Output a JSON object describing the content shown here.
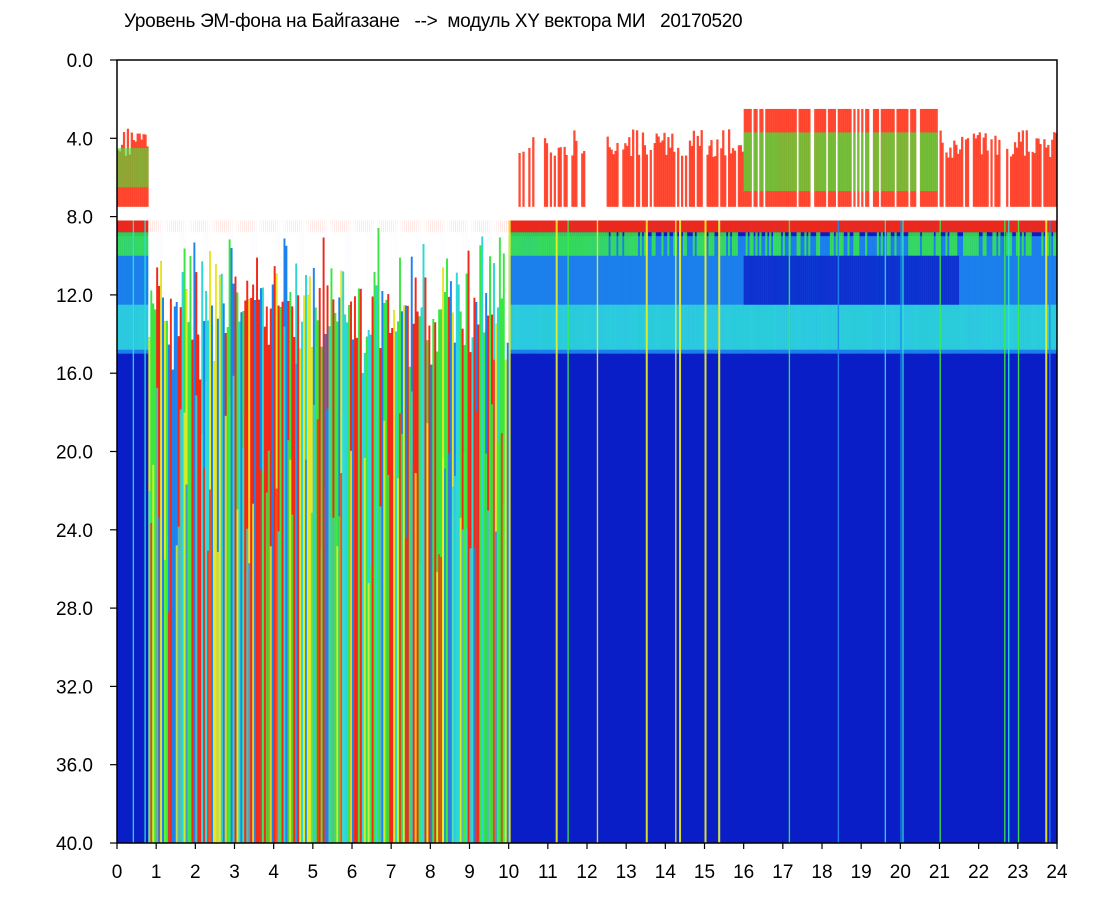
{
  "chart_data": {
    "type": "heatmap",
    "title": "Уровень ЭМ-фона на Байгазане   -->  модуль XY вектора МИ   20170520",
    "xlabel": "",
    "ylabel": "",
    "xlim": [
      0,
      24
    ],
    "ylim": [
      0,
      40
    ],
    "y_axis_inverted": true,
    "grid": false,
    "x_ticks": [
      "0",
      "1",
      "2",
      "3",
      "4",
      "5",
      "6",
      "7",
      "8",
      "9",
      "10",
      "11",
      "12",
      "13",
      "14",
      "15",
      "16",
      "17",
      "18",
      "19",
      "20",
      "21",
      "22",
      "23",
      "24"
    ],
    "y_ticks": [
      "0.0",
      "4.0",
      "8.0",
      "12.0",
      "16.0",
      "20.0",
      "24.0",
      "28.0",
      "32.0",
      "36.0",
      "40.0"
    ],
    "colorscale": [
      "#1a2ed8",
      "#1e88f0",
      "#2fe0d8",
      "#3cf03c",
      "#f0f020",
      "#ff2a10",
      "#ffffff"
    ],
    "colors": {
      "background": "#ffffff",
      "axis": "#000000",
      "deep_blue": "#0a1ec8"
    },
    "bands": [
      {
        "name": "main",
        "from": 8.2,
        "to": 40
      },
      {
        "name": "upper",
        "from": 2.5,
        "to": 7.5
      }
    ]
  }
}
